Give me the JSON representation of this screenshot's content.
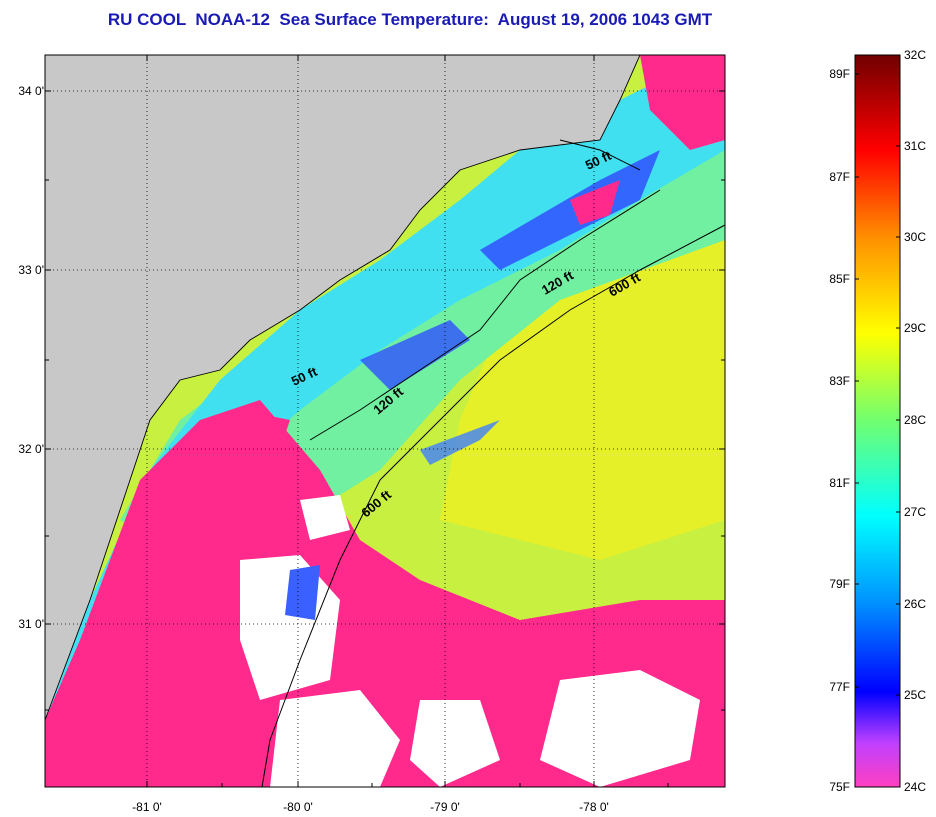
{
  "title": "RU COOL  NOAA-12  Sea Surface Temperature:  August 19, 2006 1043 GMT",
  "latitude_labels": [
    "34 0'",
    "33 0'",
    "32 0'",
    "31 0'"
  ],
  "longitude_labels": [
    "-81 0'",
    "-80 0'",
    "-79 0'",
    "-78 0'"
  ],
  "isobath_labels": [
    "50 ft",
    "120 ft",
    "600 ft",
    "50 ft",
    "120 ft",
    "600 ft"
  ],
  "colorbar": {
    "fahrenheit_labels": [
      "89F",
      "87F",
      "85F",
      "83F",
      "81F",
      "79F",
      "77F",
      "75F"
    ],
    "celsius_labels": [
      "32C",
      "31C",
      "30C",
      "29C",
      "28C",
      "27C",
      "26C",
      "25C",
      "24C"
    ]
  },
  "colors": {
    "land": "#c8c8c8",
    "cloud_cold": "#ff2a8c",
    "cloud_white": "#ffffff",
    "warm_water": "#e0f020",
    "shelf_water": "#40e6f0",
    "title": "#1a1ab4"
  }
}
